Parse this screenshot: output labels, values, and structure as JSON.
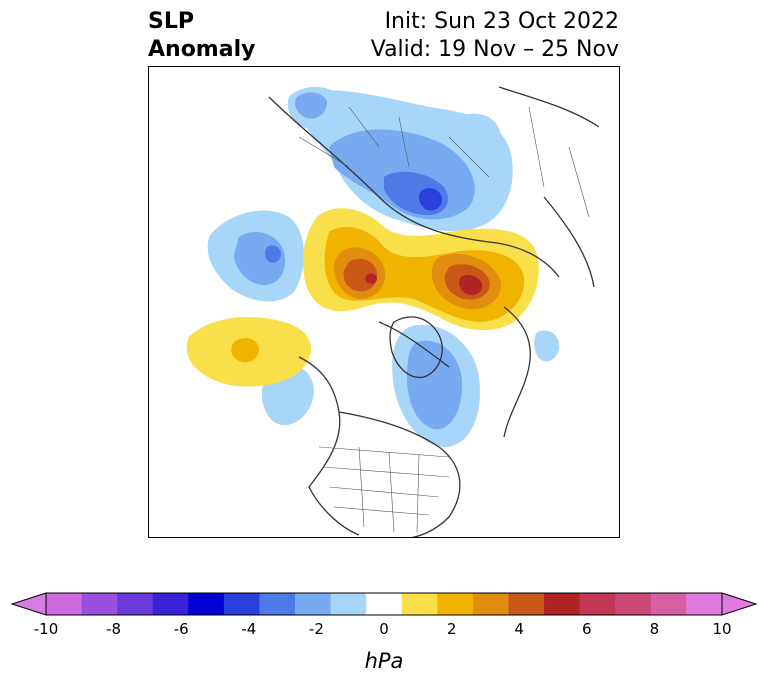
{
  "title": {
    "line1": "SLP",
    "line2": "Anomaly",
    "init": "Init: Sun 23 Oct 2022",
    "valid": "Valid: 19 Nov – 25 Nov"
  },
  "colorbar": {
    "units": "hPa",
    "tick_labels": [
      "-10",
      "-8",
      "-6",
      "-4",
      "-2",
      "0",
      "2",
      "4",
      "6",
      "8",
      "10"
    ],
    "colors": [
      "#cd6bde",
      "#9a4fde",
      "#6a3bdb",
      "#3a22d9",
      "#0000d4",
      "#2a3fdc",
      "#4f79e6",
      "#77aaf0",
      "#a8d6f8",
      "#ffffff",
      "#f9df4a",
      "#f0b400",
      "#e08d10",
      "#c95718",
      "#b02424",
      "#c03855",
      "#cb4a78",
      "#d760a5",
      "#e27bdf"
    ],
    "extend_low_color": "#d67ee6",
    "extend_high_color": "#e27bdf"
  },
  "map": {
    "field": "SLP anomaly",
    "projection": "polar stereographic"
  }
}
